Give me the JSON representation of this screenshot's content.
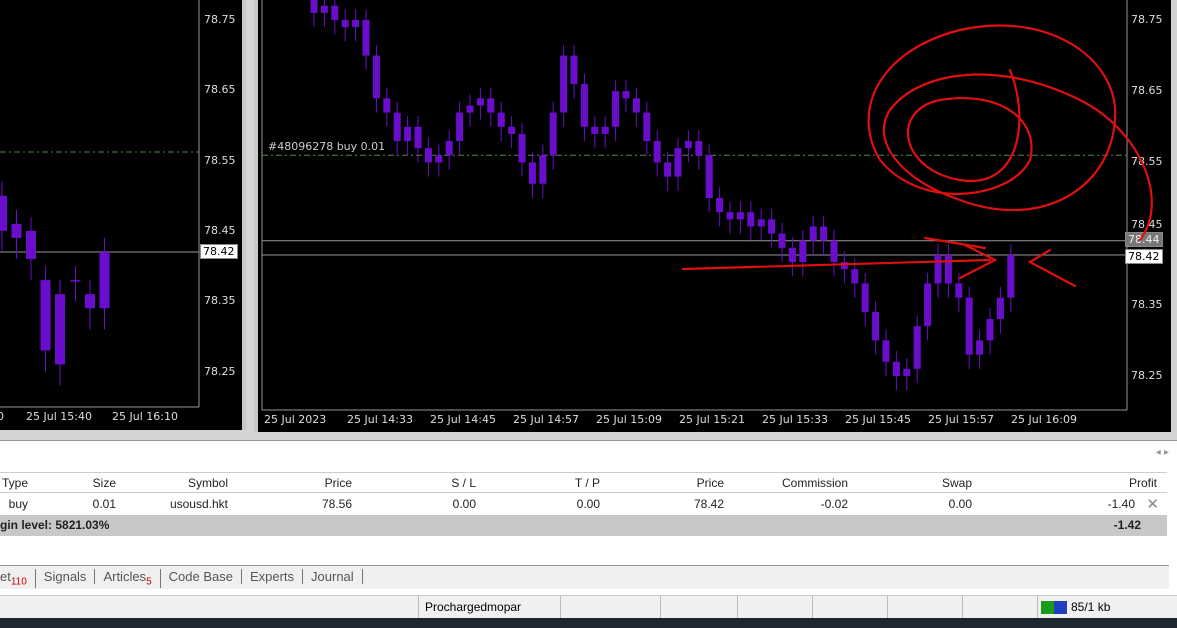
{
  "left_chart": {
    "price_labels": [
      "78.75",
      "78.65",
      "78.55",
      "78.45",
      "78.35",
      "78.25"
    ],
    "current_price": "78.42",
    "time_labels": [
      "0",
      "25 Jul 15:40",
      "25 Jul 16:10"
    ],
    "candles": [
      [
        78.5,
        78.45
      ],
      [
        78.46,
        78.44
      ],
      [
        78.45,
        78.41
      ],
      [
        78.38,
        78.28
      ],
      [
        78.36,
        78.26
      ],
      [
        78.38,
        78.38
      ],
      [
        78.36,
        78.34
      ],
      [
        78.34,
        78.42
      ]
    ]
  },
  "main_chart": {
    "price_labels": [
      "78.75",
      "78.65",
      "78.55",
      "78.45",
      "78.35",
      "78.25"
    ],
    "current_price": "78.42",
    "ask_price": "78.44",
    "order_label": "#48096278 buy 0.01",
    "order_price": 78.56,
    "time_labels": [
      "25 Jul 2023",
      "25 Jul 14:33",
      "25 Jul 14:45",
      "25 Jul 14:57",
      "25 Jul 15:09",
      "25 Jul 15:21",
      "25 Jul 15:33",
      "25 Jul 15:45",
      "25 Jul 15:57",
      "25 Jul 16:09"
    ],
    "closes": [
      78.78,
      78.76,
      78.77,
      78.75,
      78.74,
      78.75,
      78.7,
      78.64,
      78.62,
      78.58,
      78.6,
      78.57,
      78.55,
      78.56,
      78.58,
      78.62,
      78.63,
      78.64,
      78.62,
      78.6,
      78.59,
      78.55,
      78.52,
      78.56,
      78.62,
      78.7,
      78.66,
      78.6,
      78.59,
      78.6,
      78.65,
      78.64,
      78.62,
      78.58,
      78.55,
      78.53,
      78.57,
      78.58,
      78.56,
      78.5,
      78.48,
      78.47,
      78.48,
      78.46,
      78.47,
      78.45,
      78.43,
      78.41,
      78.44,
      78.46,
      78.44,
      78.41,
      78.4,
      78.38,
      78.34,
      78.3,
      78.27,
      78.25,
      78.26,
      78.32,
      78.38,
      78.42,
      78.38,
      78.36,
      78.28,
      78.3,
      78.33,
      78.36,
      78.42
    ],
    "candle_color": "#6a0dcc"
  },
  "trade_table": {
    "headers": [
      "Type",
      "Size",
      "Symbol",
      "Price",
      "S / L",
      "T / P",
      "Price",
      "Commission",
      "Swap",
      "Profit"
    ],
    "row": [
      "buy",
      "0.01",
      "usousd.hkt",
      "78.56",
      "0.00",
      "0.00",
      "78.42",
      "-0.02",
      "0.00",
      "-1.40"
    ],
    "margin_level": "gin level: 5821.03%",
    "total_profit": "-1.42"
  },
  "tabs": [
    {
      "label": "et",
      "badge": "110"
    },
    {
      "label": "Signals"
    },
    {
      "label": "Articles",
      "badge": "5"
    },
    {
      "label": "Code Base"
    },
    {
      "label": "Experts"
    },
    {
      "label": "Journal"
    }
  ],
  "status": {
    "profile": "Prochargedmopar",
    "traffic": "85/1 kb"
  },
  "annotation_color": "#e01010"
}
